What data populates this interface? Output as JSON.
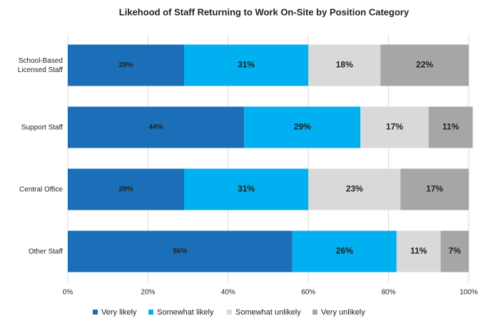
{
  "chart_data": {
    "type": "stacked-bar-horizontal",
    "title": "Likehood of Staff Returning to Work On-Site by Position Category",
    "categories": [
      "School-Based Licensed Staff",
      "Support Staff",
      "Central Office",
      "Other Staff"
    ],
    "series": [
      {
        "name": "Very likely",
        "color": "#1a6fb8",
        "values": [
          29,
          44,
          29,
          56
        ],
        "value_labels": [
          "29%",
          "44%",
          "29%",
          "56%"
        ]
      },
      {
        "name": "Somewhat likely",
        "color": "#00b0f0",
        "values": [
          31,
          29,
          31,
          26
        ],
        "value_labels": [
          "31%",
          "29%",
          "31%",
          "26%"
        ]
      },
      {
        "name": "Somewhat unlikely",
        "color": "#d9d9d9",
        "values": [
          18,
          17,
          23,
          11
        ],
        "value_labels": [
          "18%",
          "17%",
          "23%",
          "11%"
        ]
      },
      {
        "name": "Very unlikely",
        "color": "#a6a6a6",
        "values": [
          22,
          11,
          17,
          7
        ],
        "value_labels": [
          "22%",
          "11%",
          "17%",
          "7%"
        ]
      }
    ],
    "xlim": [
      0,
      100
    ],
    "xticks": [
      {
        "value": 0,
        "label": "0%"
      },
      {
        "value": 20,
        "label": "20%"
      },
      {
        "value": 40,
        "label": "40%"
      },
      {
        "value": 60,
        "label": "60%"
      },
      {
        "value": 80,
        "label": "80%"
      },
      {
        "value": 100,
        "label": "100%"
      }
    ],
    "grid": true,
    "legend": "bottom"
  }
}
